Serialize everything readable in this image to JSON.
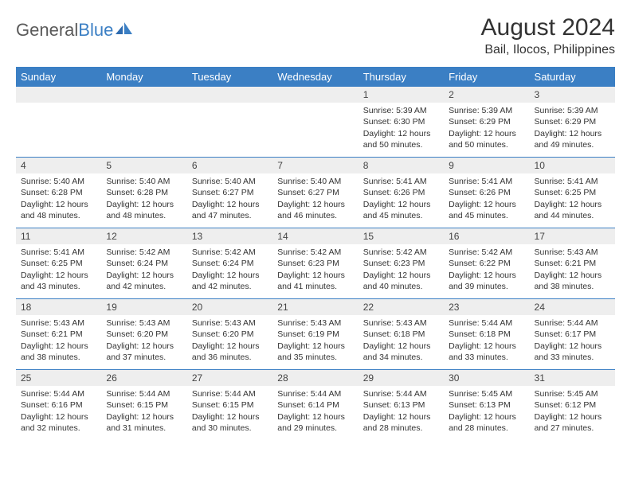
{
  "logo": {
    "text1": "General",
    "text2": "Blue"
  },
  "title": "August 2024",
  "location": "Bail, Ilocos, Philippines",
  "colors": {
    "header_bg": "#3b7fc4",
    "day_number_bg": "#eeeeee",
    "text": "#333333",
    "logo_gray": "#5a5a5a",
    "row_border": "#3b7fc4"
  },
  "day_names": [
    "Sunday",
    "Monday",
    "Tuesday",
    "Wednesday",
    "Thursday",
    "Friday",
    "Saturday"
  ],
  "weeks": [
    [
      {
        "n": "",
        "sunrise": "",
        "sunset": "",
        "daylight": ""
      },
      {
        "n": "",
        "sunrise": "",
        "sunset": "",
        "daylight": ""
      },
      {
        "n": "",
        "sunrise": "",
        "sunset": "",
        "daylight": ""
      },
      {
        "n": "",
        "sunrise": "",
        "sunset": "",
        "daylight": ""
      },
      {
        "n": "1",
        "sunrise": "Sunrise: 5:39 AM",
        "sunset": "Sunset: 6:30 PM",
        "daylight": "Daylight: 12 hours and 50 minutes."
      },
      {
        "n": "2",
        "sunrise": "Sunrise: 5:39 AM",
        "sunset": "Sunset: 6:29 PM",
        "daylight": "Daylight: 12 hours and 50 minutes."
      },
      {
        "n": "3",
        "sunrise": "Sunrise: 5:39 AM",
        "sunset": "Sunset: 6:29 PM",
        "daylight": "Daylight: 12 hours and 49 minutes."
      }
    ],
    [
      {
        "n": "4",
        "sunrise": "Sunrise: 5:40 AM",
        "sunset": "Sunset: 6:28 PM",
        "daylight": "Daylight: 12 hours and 48 minutes."
      },
      {
        "n": "5",
        "sunrise": "Sunrise: 5:40 AM",
        "sunset": "Sunset: 6:28 PM",
        "daylight": "Daylight: 12 hours and 48 minutes."
      },
      {
        "n": "6",
        "sunrise": "Sunrise: 5:40 AM",
        "sunset": "Sunset: 6:27 PM",
        "daylight": "Daylight: 12 hours and 47 minutes."
      },
      {
        "n": "7",
        "sunrise": "Sunrise: 5:40 AM",
        "sunset": "Sunset: 6:27 PM",
        "daylight": "Daylight: 12 hours and 46 minutes."
      },
      {
        "n": "8",
        "sunrise": "Sunrise: 5:41 AM",
        "sunset": "Sunset: 6:26 PM",
        "daylight": "Daylight: 12 hours and 45 minutes."
      },
      {
        "n": "9",
        "sunrise": "Sunrise: 5:41 AM",
        "sunset": "Sunset: 6:26 PM",
        "daylight": "Daylight: 12 hours and 45 minutes."
      },
      {
        "n": "10",
        "sunrise": "Sunrise: 5:41 AM",
        "sunset": "Sunset: 6:25 PM",
        "daylight": "Daylight: 12 hours and 44 minutes."
      }
    ],
    [
      {
        "n": "11",
        "sunrise": "Sunrise: 5:41 AM",
        "sunset": "Sunset: 6:25 PM",
        "daylight": "Daylight: 12 hours and 43 minutes."
      },
      {
        "n": "12",
        "sunrise": "Sunrise: 5:42 AM",
        "sunset": "Sunset: 6:24 PM",
        "daylight": "Daylight: 12 hours and 42 minutes."
      },
      {
        "n": "13",
        "sunrise": "Sunrise: 5:42 AM",
        "sunset": "Sunset: 6:24 PM",
        "daylight": "Daylight: 12 hours and 42 minutes."
      },
      {
        "n": "14",
        "sunrise": "Sunrise: 5:42 AM",
        "sunset": "Sunset: 6:23 PM",
        "daylight": "Daylight: 12 hours and 41 minutes."
      },
      {
        "n": "15",
        "sunrise": "Sunrise: 5:42 AM",
        "sunset": "Sunset: 6:23 PM",
        "daylight": "Daylight: 12 hours and 40 minutes."
      },
      {
        "n": "16",
        "sunrise": "Sunrise: 5:42 AM",
        "sunset": "Sunset: 6:22 PM",
        "daylight": "Daylight: 12 hours and 39 minutes."
      },
      {
        "n": "17",
        "sunrise": "Sunrise: 5:43 AM",
        "sunset": "Sunset: 6:21 PM",
        "daylight": "Daylight: 12 hours and 38 minutes."
      }
    ],
    [
      {
        "n": "18",
        "sunrise": "Sunrise: 5:43 AM",
        "sunset": "Sunset: 6:21 PM",
        "daylight": "Daylight: 12 hours and 38 minutes."
      },
      {
        "n": "19",
        "sunrise": "Sunrise: 5:43 AM",
        "sunset": "Sunset: 6:20 PM",
        "daylight": "Daylight: 12 hours and 37 minutes."
      },
      {
        "n": "20",
        "sunrise": "Sunrise: 5:43 AM",
        "sunset": "Sunset: 6:20 PM",
        "daylight": "Daylight: 12 hours and 36 minutes."
      },
      {
        "n": "21",
        "sunrise": "Sunrise: 5:43 AM",
        "sunset": "Sunset: 6:19 PM",
        "daylight": "Daylight: 12 hours and 35 minutes."
      },
      {
        "n": "22",
        "sunrise": "Sunrise: 5:43 AM",
        "sunset": "Sunset: 6:18 PM",
        "daylight": "Daylight: 12 hours and 34 minutes."
      },
      {
        "n": "23",
        "sunrise": "Sunrise: 5:44 AM",
        "sunset": "Sunset: 6:18 PM",
        "daylight": "Daylight: 12 hours and 33 minutes."
      },
      {
        "n": "24",
        "sunrise": "Sunrise: 5:44 AM",
        "sunset": "Sunset: 6:17 PM",
        "daylight": "Daylight: 12 hours and 33 minutes."
      }
    ],
    [
      {
        "n": "25",
        "sunrise": "Sunrise: 5:44 AM",
        "sunset": "Sunset: 6:16 PM",
        "daylight": "Daylight: 12 hours and 32 minutes."
      },
      {
        "n": "26",
        "sunrise": "Sunrise: 5:44 AM",
        "sunset": "Sunset: 6:15 PM",
        "daylight": "Daylight: 12 hours and 31 minutes."
      },
      {
        "n": "27",
        "sunrise": "Sunrise: 5:44 AM",
        "sunset": "Sunset: 6:15 PM",
        "daylight": "Daylight: 12 hours and 30 minutes."
      },
      {
        "n": "28",
        "sunrise": "Sunrise: 5:44 AM",
        "sunset": "Sunset: 6:14 PM",
        "daylight": "Daylight: 12 hours and 29 minutes."
      },
      {
        "n": "29",
        "sunrise": "Sunrise: 5:44 AM",
        "sunset": "Sunset: 6:13 PM",
        "daylight": "Daylight: 12 hours and 28 minutes."
      },
      {
        "n": "30",
        "sunrise": "Sunrise: 5:45 AM",
        "sunset": "Sunset: 6:13 PM",
        "daylight": "Daylight: 12 hours and 28 minutes."
      },
      {
        "n": "31",
        "sunrise": "Sunrise: 5:45 AM",
        "sunset": "Sunset: 6:12 PM",
        "daylight": "Daylight: 12 hours and 27 minutes."
      }
    ]
  ]
}
